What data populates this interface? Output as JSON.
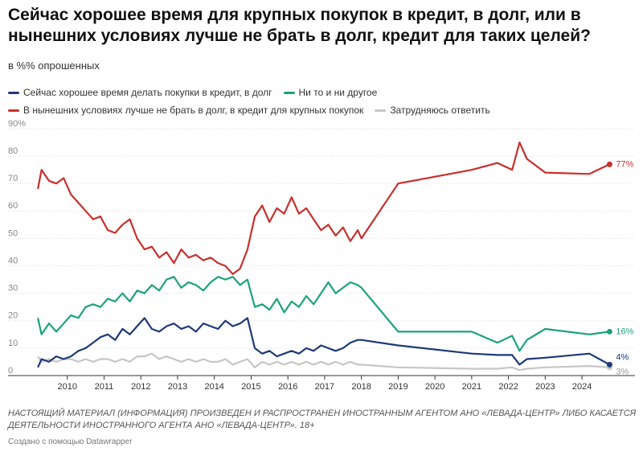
{
  "chart_data": {
    "type": "line",
    "title": "Сейчас хорошее время для крупных покупок в кредит, в долг, или в нынешних условиях лучше не брать в долг, кредит для таких целей?",
    "subtitle": "в %% опрошенных",
    "x": [
      2009.2,
      2009.3,
      2009.5,
      2009.7,
      2009.9,
      2010.1,
      2010.3,
      2010.5,
      2010.7,
      2010.9,
      2011.1,
      2011.3,
      2011.5,
      2011.7,
      2011.9,
      2012.1,
      2012.3,
      2012.5,
      2012.7,
      2012.9,
      2013.1,
      2013.3,
      2013.5,
      2013.7,
      2013.9,
      2014.1,
      2014.3,
      2014.5,
      2014.7,
      2014.9,
      2015.1,
      2015.3,
      2015.5,
      2015.7,
      2015.9,
      2016.1,
      2016.3,
      2016.5,
      2016.7,
      2016.9,
      2017.1,
      2017.3,
      2017.5,
      2017.7,
      2017.9,
      2018.0,
      2019.0,
      2021.0,
      2021.7,
      2022.1,
      2022.3,
      2022.5,
      2023.0,
      2024.2,
      2024.75
    ],
    "series": [
      {
        "name": "Сейчас хорошее время делать покупки в кредит, в долг",
        "color": "#1c3a78",
        "values": [
          3,
          6,
          5,
          7,
          6,
          7,
          9,
          10,
          12,
          14,
          15,
          13,
          17,
          15,
          18,
          21,
          17,
          16,
          18,
          19,
          17,
          18,
          16,
          19,
          18,
          17,
          20,
          18,
          19,
          21,
          10,
          8,
          9,
          7,
          8,
          9,
          8,
          10,
          9,
          11,
          10,
          9,
          10,
          12,
          13,
          13,
          11,
          8,
          7.5,
          7.5,
          4,
          6,
          6.5,
          8,
          4
        ],
        "value_labels": [
          null,
          null,
          null,
          null,
          null,
          null,
          null,
          null,
          null,
          null,
          null,
          null,
          null,
          null,
          null,
          null,
          null,
          null,
          null,
          null,
          null,
          null,
          null,
          null,
          null,
          null,
          null,
          null,
          null,
          null,
          null,
          null,
          null,
          null,
          null,
          null,
          null,
          null,
          null,
          null,
          null,
          null,
          null,
          null,
          null,
          null,
          null,
          null,
          null,
          null,
          null,
          null,
          null,
          null,
          "4%"
        ]
      },
      {
        "name": "Ни то и ни другое",
        "color": "#1aa37a",
        "values": [
          21,
          15,
          19,
          16,
          19,
          22,
          21,
          25,
          26,
          25,
          28,
          27,
          30,
          27,
          31,
          30,
          33,
          31,
          35,
          36,
          32,
          34,
          33,
          31,
          34,
          36,
          35,
          36,
          33,
          35,
          25,
          26,
          24,
          28,
          23,
          27,
          25,
          29,
          26,
          30,
          34,
          30,
          32,
          34,
          33,
          32,
          16,
          16,
          12,
          14.5,
          9,
          13,
          17,
          15,
          16
        ],
        "value_labels": [
          null,
          null,
          null,
          null,
          null,
          null,
          null,
          null,
          null,
          null,
          null,
          null,
          null,
          null,
          null,
          null,
          null,
          null,
          null,
          null,
          null,
          null,
          null,
          null,
          null,
          null,
          null,
          null,
          null,
          null,
          null,
          null,
          null,
          null,
          null,
          null,
          null,
          null,
          null,
          null,
          null,
          null,
          null,
          null,
          null,
          null,
          null,
          null,
          null,
          null,
          null,
          null,
          null,
          null,
          "16%"
        ]
      },
      {
        "name": "В нынешних условиях лучше не брать в долг, в кредит для крупных покупок",
        "color": "#c8302c",
        "values": [
          68,
          75,
          71,
          70,
          72,
          66,
          63,
          60,
          57,
          58,
          53,
          52,
          55,
          57,
          50,
          46,
          47,
          43,
          45,
          41,
          46,
          43,
          44,
          42,
          43,
          41,
          40,
          37,
          39,
          46,
          58,
          62,
          56,
          61,
          59,
          65,
          59,
          61,
          57,
          53,
          55,
          51,
          54,
          49,
          53,
          50,
          70,
          75,
          77.5,
          75,
          85,
          79,
          74,
          73.5,
          77
        ],
        "value_labels": [
          null,
          null,
          null,
          null,
          null,
          null,
          null,
          null,
          null,
          null,
          null,
          null,
          null,
          null,
          null,
          null,
          null,
          null,
          null,
          null,
          null,
          null,
          null,
          null,
          null,
          null,
          null,
          null,
          null,
          null,
          null,
          null,
          null,
          null,
          null,
          null,
          null,
          null,
          null,
          null,
          null,
          null,
          null,
          null,
          null,
          null,
          null,
          null,
          null,
          null,
          null,
          null,
          null,
          null,
          "77%"
        ]
      },
      {
        "name": "Затрудняюсь ответить",
        "color": "#c6c6c6",
        "values": [
          7,
          5,
          6,
          5,
          6,
          6,
          5,
          6,
          5,
          6,
          6,
          5,
          6,
          5,
          7,
          7,
          8,
          6,
          7,
          6,
          5,
          6,
          5,
          6,
          5,
          5,
          6,
          4,
          5,
          6,
          3,
          5,
          4,
          5,
          4,
          5,
          4,
          5,
          4,
          5,
          4,
          5,
          4,
          5,
          4,
          4,
          3,
          2.5,
          2.5,
          3,
          2,
          2.5,
          3,
          3.5,
          3
        ],
        "value_labels": [
          null,
          null,
          null,
          null,
          null,
          null,
          null,
          null,
          null,
          null,
          null,
          null,
          null,
          null,
          null,
          null,
          null,
          null,
          null,
          null,
          null,
          null,
          null,
          null,
          null,
          null,
          null,
          null,
          null,
          null,
          null,
          null,
          null,
          null,
          null,
          null,
          null,
          null,
          null,
          null,
          null,
          null,
          null,
          null,
          null,
          null,
          null,
          null,
          null,
          null,
          null,
          null,
          null,
          null,
          "3%"
        ]
      }
    ],
    "xlim": [
      2009,
      2025.2
    ],
    "xticks": [
      2010,
      2011,
      2012,
      2013,
      2014,
      2015,
      2016,
      2017,
      2018,
      2019,
      2020,
      2021,
      2022,
      2023,
      2024
    ],
    "ylim": [
      0,
      90
    ],
    "yticks": [
      0,
      10,
      20,
      30,
      40,
      50,
      60,
      70,
      80,
      {
        "value": 90,
        "label": "90%"
      }
    ],
    "grid": true,
    "notes": [
      "НАСТОЯЩИЙ МАТЕРИАЛ (ИНФОРМАЦИЯ) ПРОИЗВЕДЕН И РАСПРОСТРАНЕН ИНОСТРАННЫМ АГЕНТОМ АНО «ЛЕВАДА-ЦЕНТР» ЛИБО КАСАЕТСЯ ДЕЯТЕЛЬНОСТИ ИНОСТРАННОГО АГЕНТА АНО «ЛЕВАДА-ЦЕНТР». 18+",
      "Создано с помощью Datawrapper"
    ]
  }
}
